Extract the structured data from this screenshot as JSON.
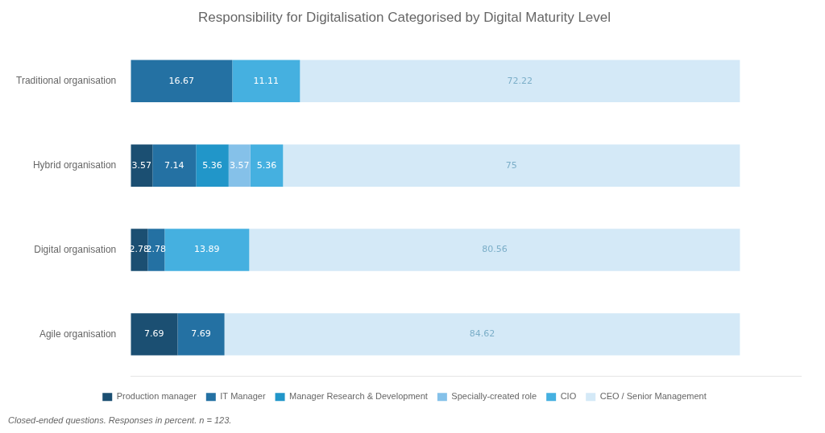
{
  "chart_data": {
    "type": "bar",
    "orientation": "horizontal",
    "stacked": true,
    "title": "Responsibility for Digitalisation Categorised by Digital Maturity Level",
    "categories": [
      "Traditional organisation",
      "Hybrid organisation",
      "Digital organisation",
      "Agile organisation"
    ],
    "series": [
      {
        "name": "Production manager",
        "color": "#1b4f72",
        "values": [
          0.0,
          3.57,
          2.78,
          7.69
        ]
      },
      {
        "name": "IT Manager",
        "color": "#2471a3",
        "values": [
          16.67,
          7.14,
          2.78,
          7.69
        ]
      },
      {
        "name": "Manager Research & Development",
        "color": "#2196c9",
        "values": [
          0.0,
          5.36,
          0.0,
          0.0
        ]
      },
      {
        "name": "Specially-created role",
        "color": "#85c1e9",
        "values": [
          0.0,
          3.57,
          0.0,
          0.0
        ]
      },
      {
        "name": "CIO",
        "color": "#45b0e0",
        "values": [
          11.11,
          5.36,
          13.89,
          0.0
        ]
      },
      {
        "name": "CEO / Senior Management",
        "color": "#d4e9f7",
        "values": [
          72.22,
          75.0,
          80.56,
          84.62
        ]
      }
    ],
    "xlim": [
      0,
      110
    ],
    "xticks": [
      0,
      10,
      20,
      30,
      40,
      50,
      60,
      70,
      80,
      90,
      100,
      110
    ],
    "tick_labels": "y",
    "grid": false,
    "legend": "bottom",
    "data_labels": true,
    "annotations": [
      "Closed-ended questions. Responses in percent. n = 123."
    ]
  }
}
